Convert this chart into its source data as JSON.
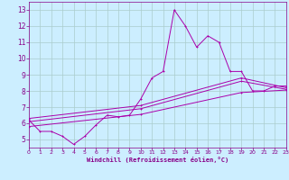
{
  "background_color": "#cceeff",
  "grid_color": "#aacccc",
  "line_color": "#aa00aa",
  "xlabel": "Windchill (Refroidissement éolien,°C)",
  "xlabel_color": "#880088",
  "tick_color": "#880088",
  "xmin": 0,
  "xmax": 23,
  "ymin": 4.5,
  "ymax": 13.5,
  "yticks": [
    5,
    6,
    7,
    8,
    9,
    10,
    11,
    12,
    13
  ],
  "xticks": [
    0,
    1,
    2,
    3,
    4,
    5,
    6,
    7,
    8,
    9,
    10,
    11,
    12,
    13,
    14,
    15,
    16,
    17,
    18,
    19,
    20,
    21,
    22,
    23
  ],
  "line1_x": [
    0,
    1,
    2,
    3,
    4,
    5,
    6,
    7,
    8,
    9,
    10,
    11,
    12,
    13,
    14,
    15,
    16,
    17,
    18,
    19,
    20,
    21,
    22,
    23
  ],
  "line1_y": [
    6.2,
    5.5,
    5.5,
    5.2,
    4.7,
    5.2,
    5.9,
    6.5,
    6.4,
    6.5,
    7.5,
    8.8,
    9.2,
    13.0,
    12.0,
    10.7,
    11.4,
    11.0,
    9.2,
    9.2,
    8.0,
    8.0,
    8.3,
    8.3
  ],
  "line2_x": [
    0,
    10,
    19,
    23
  ],
  "line2_y": [
    6.3,
    7.1,
    8.8,
    8.2
  ],
  "line3_x": [
    0,
    10,
    19,
    23
  ],
  "line3_y": [
    6.1,
    6.9,
    8.6,
    8.1
  ],
  "line4_x": [
    0,
    10,
    19,
    23
  ],
  "line4_y": [
    5.8,
    6.55,
    7.9,
    8.05
  ]
}
